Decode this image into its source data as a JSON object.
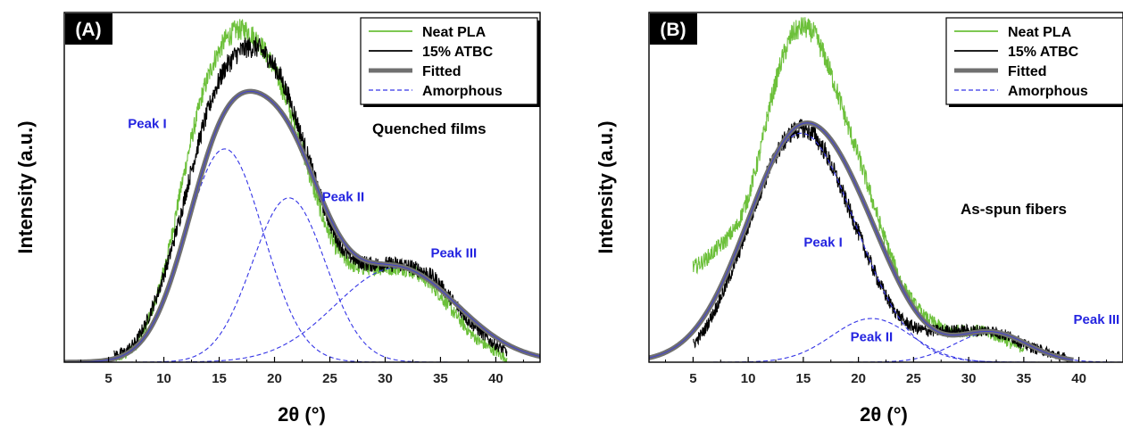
{
  "colors": {
    "neat": "#6cc03a",
    "atbc": "#000000",
    "fitted": "#707070",
    "amorphous": "#3535e6",
    "peak_label": "#2424e0"
  },
  "chart_data": [
    {
      "type": "line",
      "panel_tag": "(A)",
      "annotation": "Quenched films",
      "xlabel": "2θ (°)",
      "ylabel": "Intensity (a.u.)",
      "xlim": [
        1,
        44
      ],
      "ylim": [
        0,
        1
      ],
      "xticks": [
        5,
        10,
        15,
        20,
        25,
        30,
        35,
        40
      ],
      "legend": {
        "placement": "top-right",
        "entries": [
          {
            "label": "Neat PLA",
            "key": "neat"
          },
          {
            "label": "15% ATBC",
            "key": "atbc"
          },
          {
            "label": "Fitted",
            "key": "fitted"
          },
          {
            "label": "Amorphous",
            "key": "amorphous"
          }
        ]
      },
      "peak_labels": [
        {
          "text": "Peak I",
          "x": 8.5,
          "y": 0.67
        },
        {
          "text": "Peak II",
          "x": 26.2,
          "y": 0.46
        },
        {
          "text": "Peak III",
          "x": 36.2,
          "y": 0.3
        }
      ],
      "series": [
        {
          "name": "Neat PLA",
          "key": "neat",
          "x": [
            5.5,
            6.5,
            7.5,
            8.5,
            9.5,
            10.5,
            11.5,
            12.5,
            13.5,
            14.5,
            15.5,
            16.5,
            17.5,
            18.5,
            19.5,
            20.5,
            21.5,
            22.5,
            23.5,
            24.5,
            25.5,
            26.5,
            27.5,
            28.5,
            29.5,
            30.5,
            31.5,
            32.5,
            33.5,
            34.5,
            35.5,
            36.5,
            37.5,
            38.5,
            39.5,
            40.5,
            41.0
          ],
          "y": [
            0.01,
            0.02,
            0.05,
            0.11,
            0.2,
            0.33,
            0.49,
            0.64,
            0.77,
            0.86,
            0.92,
            0.95,
            0.95,
            0.92,
            0.87,
            0.8,
            0.71,
            0.61,
            0.5,
            0.4,
            0.33,
            0.29,
            0.27,
            0.27,
            0.27,
            0.27,
            0.27,
            0.26,
            0.24,
            0.21,
            0.17,
            0.13,
            0.09,
            0.06,
            0.04,
            0.02,
            0.01
          ]
        },
        {
          "name": "15% ATBC",
          "key": "atbc",
          "x": [
            5.5,
            6.5,
            7.5,
            8.5,
            9.5,
            10.5,
            11.5,
            12.5,
            13.5,
            14.5,
            15.5,
            16.5,
            17.5,
            18.5,
            19.5,
            20.5,
            21.5,
            22.5,
            23.5,
            24.5,
            25.5,
            26.5,
            27.5,
            28.5,
            29.5,
            30.5,
            31.5,
            32.5,
            33.5,
            34.5,
            35.5,
            36.5,
            37.5,
            38.5,
            39.5,
            40.5,
            41.0
          ],
          "y": [
            0.02,
            0.03,
            0.06,
            0.12,
            0.2,
            0.3,
            0.42,
            0.55,
            0.67,
            0.77,
            0.84,
            0.88,
            0.9,
            0.9,
            0.87,
            0.82,
            0.74,
            0.64,
            0.54,
            0.44,
            0.36,
            0.31,
            0.29,
            0.28,
            0.28,
            0.28,
            0.28,
            0.27,
            0.26,
            0.24,
            0.2,
            0.16,
            0.12,
            0.09,
            0.06,
            0.04,
            0.03
          ]
        },
        {
          "name": "Fitted",
          "key": "fitted",
          "x_range": [
            1,
            44
          ],
          "components": [
            {
              "a": 0.61,
              "mu": 15.5,
              "sigma": 3.5
            },
            {
              "a": 0.47,
              "mu": 21.3,
              "sigma": 3.3
            },
            {
              "a": 0.27,
              "mu": 31.0,
              "sigma": 5.5
            }
          ]
        },
        {
          "name": "Amorphous",
          "key": "amorphous",
          "x_range": [
            1,
            44
          ],
          "components": [
            {
              "a": 0.61,
              "mu": 15.5,
              "sigma": 3.5
            },
            {
              "a": 0.47,
              "mu": 21.3,
              "sigma": 3.3
            },
            {
              "a": 0.27,
              "mu": 31.0,
              "sigma": 5.5
            }
          ]
        }
      ]
    },
    {
      "type": "line",
      "panel_tag": "(B)",
      "annotation": "As-spun fibers",
      "xlabel": "2θ (°)",
      "ylabel": "Intensity (a.u.)",
      "xlim": [
        1,
        44
      ],
      "ylim": [
        0,
        1
      ],
      "xticks": [
        5,
        10,
        15,
        20,
        25,
        30,
        35,
        40
      ],
      "legend": {
        "placement": "top-right",
        "entries": [
          {
            "label": "Neat PLA",
            "key": "neat"
          },
          {
            "label": "15% ATBC",
            "key": "atbc"
          },
          {
            "label": "Fitted",
            "key": "fitted"
          },
          {
            "label": "Amorphous",
            "key": "amorphous"
          }
        ]
      },
      "peak_labels": [
        {
          "text": "Peak I",
          "x": 16.8,
          "y": 0.33
        },
        {
          "text": "Peak II",
          "x": 21.2,
          "y": 0.06
        },
        {
          "text": "Peak III",
          "x": 41.6,
          "y": 0.11
        }
      ],
      "series": [
        {
          "name": "Neat PLA",
          "key": "neat",
          "x": [
            5.0,
            6.0,
            7.0,
            8.0,
            9.0,
            10.0,
            11.0,
            12.0,
            13.0,
            14.0,
            15.0,
            16.0,
            17.0,
            18.0,
            19.0,
            20.0,
            21.0,
            22.0,
            23.0,
            24.0,
            25.0,
            26.0,
            27.0,
            28.0,
            29.0,
            30.0,
            31.0,
            32.0,
            33.0,
            34.0,
            35.0
          ],
          "y": [
            0.27,
            0.29,
            0.32,
            0.35,
            0.39,
            0.47,
            0.59,
            0.74,
            0.86,
            0.94,
            0.96,
            0.94,
            0.87,
            0.78,
            0.68,
            0.59,
            0.49,
            0.39,
            0.3,
            0.22,
            0.17,
            0.13,
            0.11,
            0.09,
            0.09,
            0.09,
            0.09,
            0.08,
            0.07,
            0.05,
            0.04
          ]
        },
        {
          "name": "15% ATBC",
          "key": "atbc",
          "x": [
            5.0,
            6.0,
            7.0,
            8.0,
            9.0,
            10.0,
            11.0,
            12.0,
            13.0,
            14.0,
            15.0,
            16.0,
            17.0,
            18.0,
            19.0,
            20.0,
            21.0,
            22.0,
            23.0,
            24.0,
            25.0,
            26.0,
            27.0,
            28.0,
            29.0,
            30.0,
            31.0,
            32.0,
            33.0,
            34.0,
            35.0,
            36.0,
            37.0,
            38.0,
            39.0
          ],
          "y": [
            0.05,
            0.09,
            0.15,
            0.22,
            0.3,
            0.39,
            0.48,
            0.56,
            0.62,
            0.66,
            0.67,
            0.65,
            0.6,
            0.53,
            0.45,
            0.37,
            0.29,
            0.22,
            0.16,
            0.12,
            0.1,
            0.09,
            0.09,
            0.09,
            0.09,
            0.09,
            0.09,
            0.09,
            0.08,
            0.07,
            0.05,
            0.04,
            0.03,
            0.02,
            0.01
          ]
        },
        {
          "name": "Fitted",
          "key": "fitted",
          "x_range": [
            1,
            39.5
          ],
          "components": [
            {
              "a": 0.655,
              "mu": 14.8,
              "sigma": 4.9
            },
            {
              "a": 0.125,
              "mu": 21.2,
              "sigma": 3.6
            },
            {
              "a": 0.085,
              "mu": 32.0,
              "sigma": 3.3
            }
          ]
        },
        {
          "name": "Amorphous",
          "key": "amorphous",
          "x_range": [
            1,
            44
          ],
          "components": [
            {
              "a": 0.655,
              "mu": 14.8,
              "sigma": 4.9
            },
            {
              "a": 0.125,
              "mu": 21.2,
              "sigma": 3.6
            },
            {
              "a": 0.085,
              "mu": 32.0,
              "sigma": 3.3
            }
          ]
        }
      ]
    }
  ]
}
